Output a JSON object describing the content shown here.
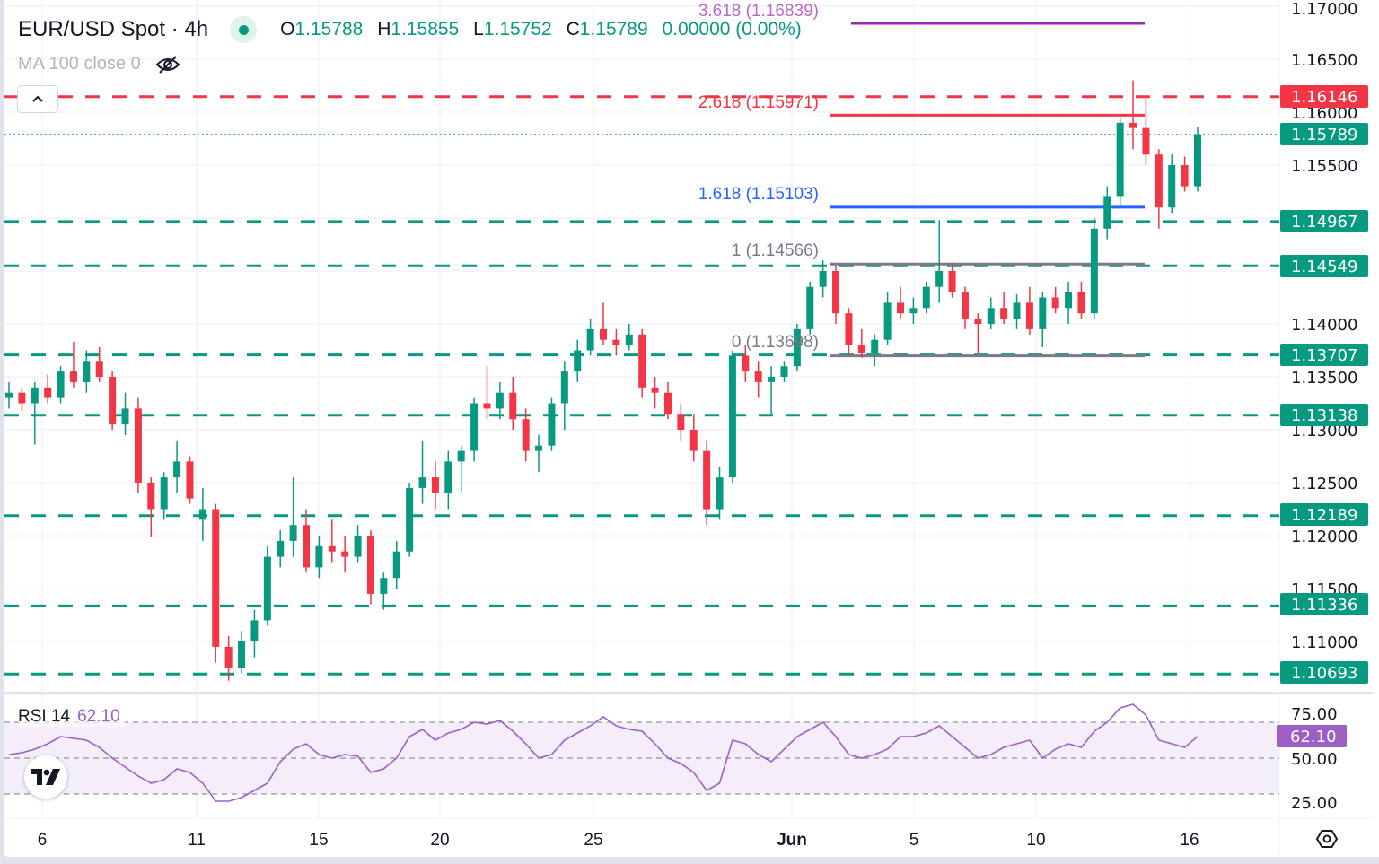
{
  "header": {
    "symbol": "EUR/USD Spot · 4h",
    "o_label": "O",
    "o": "1.15788",
    "h_label": "H",
    "h": "1.15855",
    "l_label": "L",
    "l": "1.15752",
    "c_label": "C",
    "c": "1.15789",
    "change": "0.00000 (0.00%)",
    "indicator": "MA 100 close 0",
    "indicator_icon": "eye-off-icon"
  },
  "rsi_header": {
    "label": "RSI 14",
    "value": "62.10"
  },
  "colors": {
    "up": "#089981",
    "down": "#f23645",
    "rsi": "#9c5fc6",
    "fib_3618": "#9c27b0",
    "fib_2618": "#f23645",
    "fib_1618": "#2962ff",
    "fib_gray": "#787b86"
  },
  "chart_data": {
    "type": "candlestick",
    "timeframe": "4h",
    "x_tick_labels": [
      "6",
      "11",
      "15",
      "20",
      "25",
      "Jun",
      "5",
      "10",
      "16"
    ],
    "y_tick_labels": [
      "1.17000",
      "1.16500",
      "1.16000",
      "1.15500",
      "1.14000",
      "1.13500",
      "1.13000",
      "1.12500",
      "1.12000",
      "1.11500",
      "1.11000"
    ],
    "ylim": [
      1.1035,
      1.1705
    ],
    "grid": true,
    "candles_ohlc": [
      [
        1.133,
        1.1345,
        1.132,
        1.1335
      ],
      [
        1.1335,
        1.134,
        1.1318,
        1.1325
      ],
      [
        1.1325,
        1.1345,
        1.1286,
        1.134
      ],
      [
        1.134,
        1.1352,
        1.1325,
        1.133
      ],
      [
        1.133,
        1.136,
        1.1325,
        1.1355
      ],
      [
        1.1355,
        1.1383,
        1.134,
        1.1345
      ],
      [
        1.1345,
        1.1375,
        1.1335,
        1.1365
      ],
      [
        1.1365,
        1.1378,
        1.1345,
        1.135
      ],
      [
        1.135,
        1.1355,
        1.13,
        1.1305
      ],
      [
        1.1305,
        1.1335,
        1.1295,
        1.132
      ],
      [
        1.132,
        1.133,
        1.124,
        1.125
      ],
      [
        1.125,
        1.1255,
        1.1199,
        1.1225
      ],
      [
        1.1225,
        1.126,
        1.1215,
        1.1255
      ],
      [
        1.1255,
        1.129,
        1.124,
        1.127
      ],
      [
        1.127,
        1.1275,
        1.123,
        1.1235
      ],
      [
        1.1215,
        1.1245,
        1.1195,
        1.1225
      ],
      [
        1.1225,
        1.123,
        1.108,
        1.1095
      ],
      [
        1.1095,
        1.1105,
        1.1063,
        1.1075
      ],
      [
        1.1075,
        1.111,
        1.107,
        1.11
      ],
      [
        1.11,
        1.113,
        1.1085,
        1.112
      ],
      [
        1.112,
        1.119,
        1.1115,
        1.118
      ],
      [
        1.118,
        1.1205,
        1.117,
        1.1195
      ],
      [
        1.1195,
        1.1255,
        1.118,
        1.121
      ],
      [
        1.121,
        1.1225,
        1.1165,
        1.117
      ],
      [
        1.117,
        1.12,
        1.116,
        1.119
      ],
      [
        1.119,
        1.1215,
        1.1175,
        1.1185
      ],
      [
        1.1185,
        1.12,
        1.1165,
        1.118
      ],
      [
        1.118,
        1.121,
        1.1175,
        1.12
      ],
      [
        1.12,
        1.1205,
        1.1135,
        1.1145
      ],
      [
        1.1145,
        1.1165,
        1.113,
        1.116
      ],
      [
        1.116,
        1.1195,
        1.115,
        1.1185
      ],
      [
        1.1185,
        1.125,
        1.118,
        1.1245
      ],
      [
        1.1245,
        1.129,
        1.123,
        1.1255
      ],
      [
        1.1255,
        1.127,
        1.1225,
        1.124
      ],
      [
        1.124,
        1.128,
        1.1225,
        1.127
      ],
      [
        1.127,
        1.1285,
        1.124,
        1.128
      ],
      [
        1.128,
        1.133,
        1.127,
        1.1325
      ],
      [
        1.1325,
        1.136,
        1.131,
        1.132
      ],
      [
        1.132,
        1.1345,
        1.131,
        1.1335
      ],
      [
        1.1335,
        1.135,
        1.13,
        1.131
      ],
      [
        1.131,
        1.132,
        1.127,
        1.128
      ],
      [
        1.128,
        1.1295,
        1.126,
        1.1285
      ],
      [
        1.1285,
        1.133,
        1.128,
        1.1325
      ],
      [
        1.1325,
        1.1365,
        1.13,
        1.1355
      ],
      [
        1.1355,
        1.1385,
        1.1345,
        1.1375
      ],
      [
        1.1375,
        1.1405,
        1.137,
        1.1395
      ],
      [
        1.1395,
        1.142,
        1.138,
        1.1385
      ],
      [
        1.1385,
        1.1395,
        1.137,
        1.138
      ],
      [
        1.138,
        1.14,
        1.1375,
        1.139
      ],
      [
        1.139,
        1.1395,
        1.133,
        1.134
      ],
      [
        1.134,
        1.135,
        1.132,
        1.1335
      ],
      [
        1.1335,
        1.1345,
        1.131,
        1.1315
      ],
      [
        1.1315,
        1.1325,
        1.129,
        1.13
      ],
      [
        1.13,
        1.1315,
        1.127,
        1.128
      ],
      [
        1.128,
        1.129,
        1.121,
        1.1225
      ],
      [
        1.1225,
        1.1265,
        1.1215,
        1.1255
      ],
      [
        1.1255,
        1.1375,
        1.125,
        1.137
      ],
      [
        1.137,
        1.138,
        1.1345,
        1.1355
      ],
      [
        1.1355,
        1.1365,
        1.133,
        1.1345
      ],
      [
        1.1345,
        1.136,
        1.1315,
        1.135
      ],
      [
        1.135,
        1.1365,
        1.1345,
        1.136
      ],
      [
        1.136,
        1.14,
        1.1355,
        1.1395
      ],
      [
        1.1395,
        1.144,
        1.139,
        1.1435
      ],
      [
        1.1435,
        1.146,
        1.1425,
        1.145
      ],
      [
        1.145,
        1.1455,
        1.14,
        1.141
      ],
      [
        1.141,
        1.1415,
        1.137,
        1.138
      ],
      [
        1.138,
        1.1395,
        1.1368,
        1.1372
      ],
      [
        1.1372,
        1.139,
        1.136,
        1.1385
      ],
      [
        1.1385,
        1.143,
        1.138,
        1.142
      ],
      [
        1.142,
        1.1435,
        1.1405,
        1.141
      ],
      [
        1.141,
        1.1425,
        1.14,
        1.1415
      ],
      [
        1.1415,
        1.144,
        1.141,
        1.1435
      ],
      [
        1.1435,
        1.1498,
        1.142,
        1.145
      ],
      [
        1.145,
        1.1458,
        1.1425,
        1.143
      ],
      [
        1.143,
        1.1435,
        1.1395,
        1.1405
      ],
      [
        1.1405,
        1.141,
        1.1372,
        1.14
      ],
      [
        1.14,
        1.1425,
        1.1395,
        1.1415
      ],
      [
        1.1415,
        1.143,
        1.14,
        1.1405
      ],
      [
        1.1405,
        1.1428,
        1.1395,
        1.142
      ],
      [
        1.142,
        1.1435,
        1.139,
        1.1395
      ],
      [
        1.1395,
        1.143,
        1.1378,
        1.1425
      ],
      [
        1.1425,
        1.1435,
        1.141,
        1.1415
      ],
      [
        1.1415,
        1.144,
        1.14,
        1.143
      ],
      [
        1.143,
        1.144,
        1.1405,
        1.141
      ],
      [
        1.141,
        1.15,
        1.1405,
        1.149
      ],
      [
        1.149,
        1.153,
        1.148,
        1.152
      ],
      [
        1.152,
        1.1595,
        1.151,
        1.159
      ],
      [
        1.159,
        1.163,
        1.1565,
        1.1585
      ],
      [
        1.1585,
        1.1613,
        1.155,
        1.156
      ],
      [
        1.156,
        1.1565,
        1.149,
        1.151
      ],
      [
        1.151,
        1.156,
        1.1505,
        1.155
      ],
      [
        1.155,
        1.1558,
        1.1525,
        1.153
      ],
      [
        1.153,
        1.1586,
        1.1525,
        1.1579
      ]
    ],
    "horizontal_levels": {
      "resistance": [
        "1.16146"
      ],
      "support": [
        "1.14967",
        "1.14549",
        "1.13707",
        "1.13138",
        "1.12189",
        "1.11336",
        "1.10693"
      ]
    },
    "last_price": "1.15789",
    "fibonacci": [
      {
        "label": "3.618 (1.16839)",
        "price": 1.16839,
        "color": "#9c27b0"
      },
      {
        "label": "2.618 (1.15971)",
        "price": 1.15971,
        "color": "#f23645"
      },
      {
        "label": "1.618 (1.15103)",
        "price": 1.15103,
        "color": "#2962ff"
      },
      {
        "label": "1 (1.14566)",
        "price": 1.14566,
        "color": "#787b86"
      },
      {
        "label": "0 (1.13698)",
        "price": 1.13698,
        "color": "#787b86"
      }
    ],
    "rsi": {
      "period": 14,
      "ylim": [
        0,
        100
      ],
      "y_tick_labels": [
        "75.00",
        "50.00",
        "25.00"
      ],
      "bands": [
        70,
        50,
        30
      ],
      "current": "62.10",
      "values": [
        52,
        53,
        55,
        58,
        62,
        61,
        60,
        56,
        50,
        45,
        40,
        36,
        38,
        44,
        42,
        36,
        26,
        26,
        28,
        32,
        36,
        48,
        55,
        58,
        52,
        50,
        52,
        51,
        42,
        44,
        50,
        62,
        66,
        60,
        64,
        66,
        70,
        69,
        71,
        65,
        58,
        50,
        52,
        60,
        64,
        68,
        73,
        68,
        66,
        65,
        58,
        50,
        47,
        42,
        32,
        36,
        60,
        58,
        52,
        48,
        55,
        62,
        66,
        70,
        62,
        52,
        50,
        52,
        55,
        62,
        62,
        64,
        68,
        62,
        56,
        50,
        52,
        56,
        58,
        60,
        50,
        55,
        58,
        56,
        65,
        70,
        78,
        80,
        74,
        60,
        58,
        56,
        62.1
      ]
    }
  }
}
